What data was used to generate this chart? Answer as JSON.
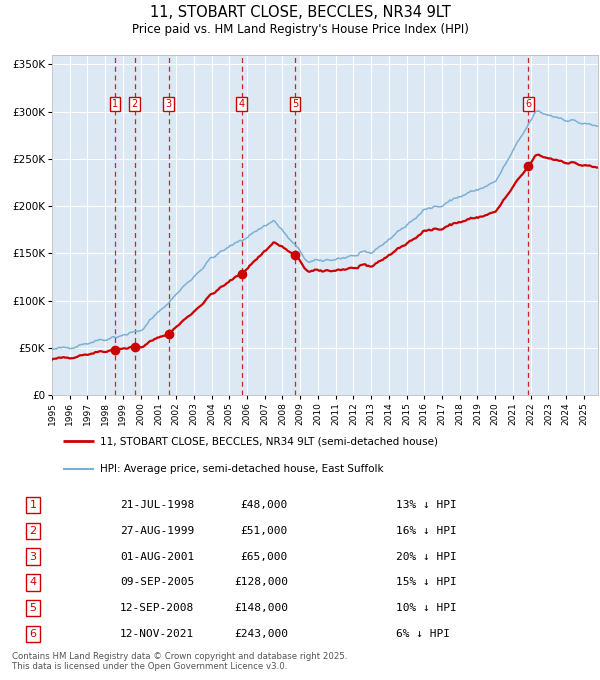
{
  "title": "11, STOBART CLOSE, BECCLES, NR34 9LT",
  "subtitle": "Price paid vs. HM Land Registry's House Price Index (HPI)",
  "property_label": "11, STOBART CLOSE, BECCLES, NR34 9LT (semi-detached house)",
  "hpi_label": "HPI: Average price, semi-detached house, East Suffolk",
  "footer": "Contains HM Land Registry data © Crown copyright and database right 2025.\nThis data is licensed under the Open Government Licence v3.0.",
  "sales": [
    {
      "num": 1,
      "date": "21-JUL-1998",
      "year": 1998.55,
      "price": 48000,
      "label": "13% ↓ HPI"
    },
    {
      "num": 2,
      "date": "27-AUG-1999",
      "year": 1999.66,
      "price": 51000,
      "label": "16% ↓ HPI"
    },
    {
      "num": 3,
      "date": "01-AUG-2001",
      "year": 2001.58,
      "price": 65000,
      "label": "20% ↓ HPI"
    },
    {
      "num": 4,
      "date": "09-SEP-2005",
      "year": 2005.69,
      "price": 128000,
      "label": "15% ↓ HPI"
    },
    {
      "num": 5,
      "date": "12-SEP-2008",
      "year": 2008.7,
      "price": 148000,
      "label": "10% ↓ HPI"
    },
    {
      "num": 6,
      "date": "12-NOV-2021",
      "year": 2021.87,
      "price": 243000,
      "label": "6% ↓ HPI"
    }
  ],
  "ylim": [
    0,
    360000
  ],
  "xlim_start": 1995.0,
  "xlim_end": 2025.8,
  "bg_color": "#dce9f5",
  "hpi_color": "#7ab0d4",
  "property_color": "#cc0000",
  "grid_color": "#ffffff"
}
